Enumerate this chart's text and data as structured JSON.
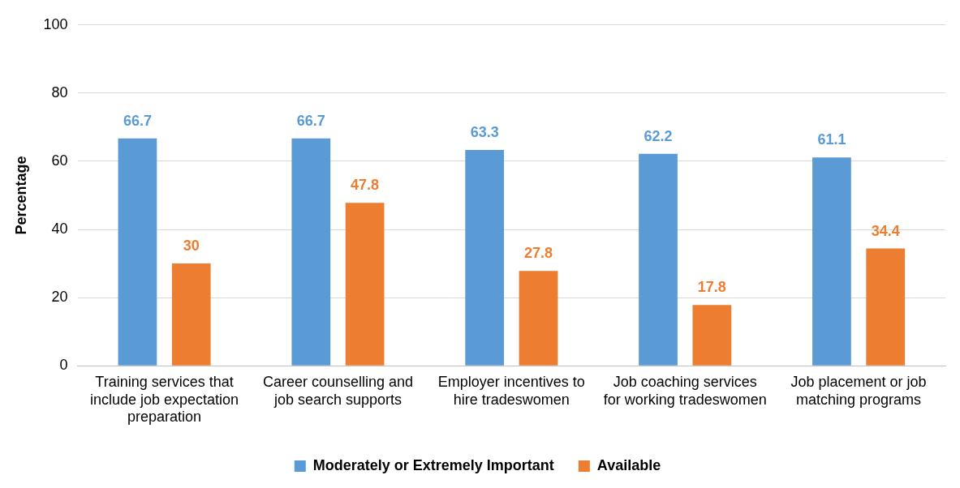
{
  "chart_data": {
    "type": "bar",
    "ylabel": "Percentage",
    "categories": [
      "Training services that include job expectation preparation",
      "Career counselling and job search supports",
      "Employer incentives to hire tradeswomen",
      "Job coaching services for working tradeswomen",
      "Job placement or job matching programs"
    ],
    "series": [
      {
        "name": "Moderately or Extremely Important",
        "color": "#5b9bd5",
        "values": [
          66.7,
          66.7,
          63.3,
          62.2,
          61.1
        ]
      },
      {
        "name": "Available",
        "color": "#ed7d31",
        "values": [
          30,
          47.8,
          27.8,
          17.8,
          34.4
        ]
      }
    ],
    "ylim": [
      0,
      100
    ],
    "yticks": [
      0,
      20,
      40,
      60,
      80,
      100
    ],
    "grid": "y",
    "legend": "bottom",
    "data_labels": true
  }
}
